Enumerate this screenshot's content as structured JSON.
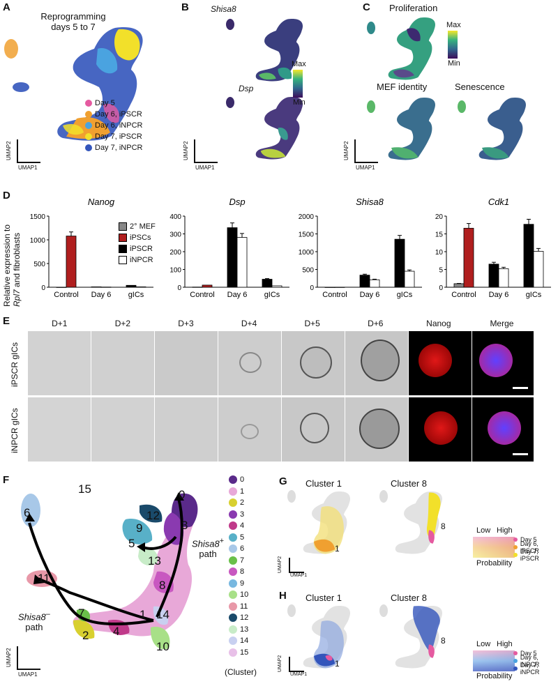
{
  "panel_A": {
    "letter": "A",
    "title_line1": "Reprogramming",
    "title_line2": "days 5 to 7",
    "legend": [
      {
        "label": "Day 5",
        "color": "#e55aa0"
      },
      {
        "label": "Day 6, iPSCR",
        "color": "#f0a030"
      },
      {
        "label": "Day 6, iNPCR",
        "color": "#4aa3e0"
      },
      {
        "label": "Day 7, iPSCR",
        "color": "#f2e02a"
      },
      {
        "label": "Day 7, iNPCR",
        "color": "#3355bb"
      }
    ],
    "axis_y": "UMAP2",
    "axis_x": "UMAP1"
  },
  "panel_B": {
    "letter": "B",
    "gene1": "Shisa8",
    "gene2": "Dsp",
    "scale_max": "Max",
    "scale_min": "Min",
    "axis_y": "UMAP2",
    "axis_x": "UMAP1"
  },
  "panel_C": {
    "letter": "C",
    "title_prolif": "Proliferation",
    "title_mef": "MEF identity",
    "title_sen": "Senescence",
    "scale_max": "Max",
    "scale_min": "Min",
    "axis_y": "UMAP2",
    "axis_x": "UMAP1"
  },
  "panel_D": {
    "letter": "D",
    "ylabel_line1": "Relative expression to",
    "ylabel_line2_gene": "Rpl7",
    "ylabel_line2_rest": " and fibroblasts",
    "legend": [
      {
        "label": "2° MEF",
        "color": "#888888"
      },
      {
        "label": "iPSCs",
        "color": "#b01e1e"
      },
      {
        "label": "iPSCR",
        "color": "#000000"
      },
      {
        "label": "iNPCR",
        "color": "#ffffff"
      }
    ],
    "chart_data": [
      {
        "type": "bar",
        "title": "Nanog",
        "categories": [
          "Control",
          "Day 6",
          "gICs"
        ],
        "ylim": [
          0,
          1500
        ],
        "yticks": [
          "0",
          "500",
          "1000",
          "1500"
        ],
        "series": [
          {
            "name": "2° MEF",
            "values": [
              1,
              null,
              null
            ]
          },
          {
            "name": "iPSCs",
            "values": [
              1080,
              null,
              null
            ]
          },
          {
            "name": "iPSCR",
            "values": [
              null,
              8,
              40
            ]
          },
          {
            "name": "iNPCR",
            "values": [
              null,
              4,
              8
            ]
          }
        ]
      },
      {
        "type": "bar",
        "title": "Dsp",
        "categories": [
          "Control",
          "Day 6",
          "gICs"
        ],
        "ylim": [
          0,
          400
        ],
        "yticks": [
          "0",
          "100",
          "200",
          "300",
          "400"
        ],
        "series": [
          {
            "name": "2° MEF",
            "values": [
              1,
              null,
              null
            ]
          },
          {
            "name": "iPSCs",
            "values": [
              12,
              null,
              null
            ]
          },
          {
            "name": "iPSCR",
            "values": [
              null,
              335,
              45
            ]
          },
          {
            "name": "iNPCR",
            "values": [
              null,
              280,
              8
            ]
          }
        ]
      },
      {
        "type": "bar",
        "title": "Shisa8",
        "categories": [
          "Control",
          "Day 6",
          "gICs"
        ],
        "ylim": [
          0,
          2000
        ],
        "yticks": [
          "0",
          "500",
          "1000",
          "1500",
          "2000"
        ],
        "series": [
          {
            "name": "2° MEF",
            "values": [
              1,
              null,
              null
            ]
          },
          {
            "name": "iPSCs",
            "values": [
              2,
              null,
              null
            ]
          },
          {
            "name": "iPSCR",
            "values": [
              null,
              340,
              1350
            ]
          },
          {
            "name": "iNPCR",
            "values": [
              null,
              210,
              450
            ]
          }
        ]
      },
      {
        "type": "bar",
        "title": "Cdk1",
        "categories": [
          "Control",
          "Day 6",
          "gICs"
        ],
        "ylim": [
          0,
          20
        ],
        "yticks": [
          "0",
          "5",
          "10",
          "15",
          "20"
        ],
        "series": [
          {
            "name": "2° MEF",
            "values": [
              1,
              null,
              null
            ]
          },
          {
            "name": "iPSCs",
            "values": [
              16.6,
              null,
              null
            ]
          },
          {
            "name": "iPSCR",
            "values": [
              null,
              6.5,
              17.7
            ]
          },
          {
            "name": "iNPCR",
            "values": [
              null,
              5.2,
              10.1
            ]
          }
        ]
      }
    ]
  },
  "panel_E": {
    "letter": "E",
    "columns": [
      "D+1",
      "D+2",
      "D+3",
      "D+4",
      "D+5",
      "D+6",
      "Nanog",
      "Merge"
    ],
    "row1": "iPSCR gICs",
    "row2": "iNPCR gICs"
  },
  "panel_F": {
    "letter": "F",
    "clusters": [
      {
        "label": "0",
        "color": "#5a2a8a"
      },
      {
        "label": "1",
        "color": "#e8a8d8"
      },
      {
        "label": "2",
        "color": "#d8d030"
      },
      {
        "label": "3",
        "color": "#8a3ab0"
      },
      {
        "label": "4",
        "color": "#c03a8a"
      },
      {
        "label": "5",
        "color": "#58b0c8"
      },
      {
        "label": "6",
        "color": "#a8c8e8"
      },
      {
        "label": "7",
        "color": "#6ac04a"
      },
      {
        "label": "8",
        "color": "#c858c0"
      },
      {
        "label": "9",
        "color": "#78b8e0"
      },
      {
        "label": "10",
        "color": "#a8e088"
      },
      {
        "label": "11",
        "color": "#e898a8"
      },
      {
        "label": "12",
        "color": "#1a4a6a"
      },
      {
        "label": "13",
        "color": "#c8ecc8"
      },
      {
        "label": "14",
        "color": "#c8d0f0"
      },
      {
        "label": "15",
        "color": "#e8c0e8"
      }
    ],
    "cluster_caption": "(Cluster)",
    "map_labels": [
      "0",
      "3",
      "12",
      "9",
      "5",
      "13",
      "8",
      "1",
      "14",
      "10",
      "4",
      "2",
      "7",
      "11",
      "6",
      "15"
    ],
    "path_minus": "Shisa8",
    "path_minus_sup": "–",
    "path_plus": "Shisa8",
    "path_plus_sup": "+",
    "path_word": "path",
    "axis_y": "UMAP2",
    "axis_x": "UMAP1"
  },
  "panel_G": {
    "letter": "G",
    "title1": "Cluster 1",
    "title2": "Cluster 8",
    "num1": "1",
    "num8": "8",
    "low": "Low",
    "high": "High",
    "prob": "Probability",
    "legend": [
      {
        "label": "Day 5",
        "color": "#e55aa0"
      },
      {
        "label": "Day 6, iPSCR",
        "color": "#f0a030"
      },
      {
        "label": "Day 7, iPSCR",
        "color": "#f2e02a"
      }
    ],
    "axis_y": "UMAP2",
    "axis_x": "UMAP1"
  },
  "panel_H": {
    "letter": "H",
    "title1": "Cluster 1",
    "title2": "Cluster 8",
    "num1": "1",
    "num8": "8",
    "low": "Low",
    "high": "High",
    "prob": "Probability",
    "legend": [
      {
        "label": "Day 5",
        "color": "#e55aa0"
      },
      {
        "label": "Day 6, iNPCR",
        "color": "#4aa3e0"
      },
      {
        "label": "Day 7, iNPCR",
        "color": "#3355bb"
      }
    ],
    "axis_y": "UMAP2",
    "axis_x": "UMAP1"
  }
}
